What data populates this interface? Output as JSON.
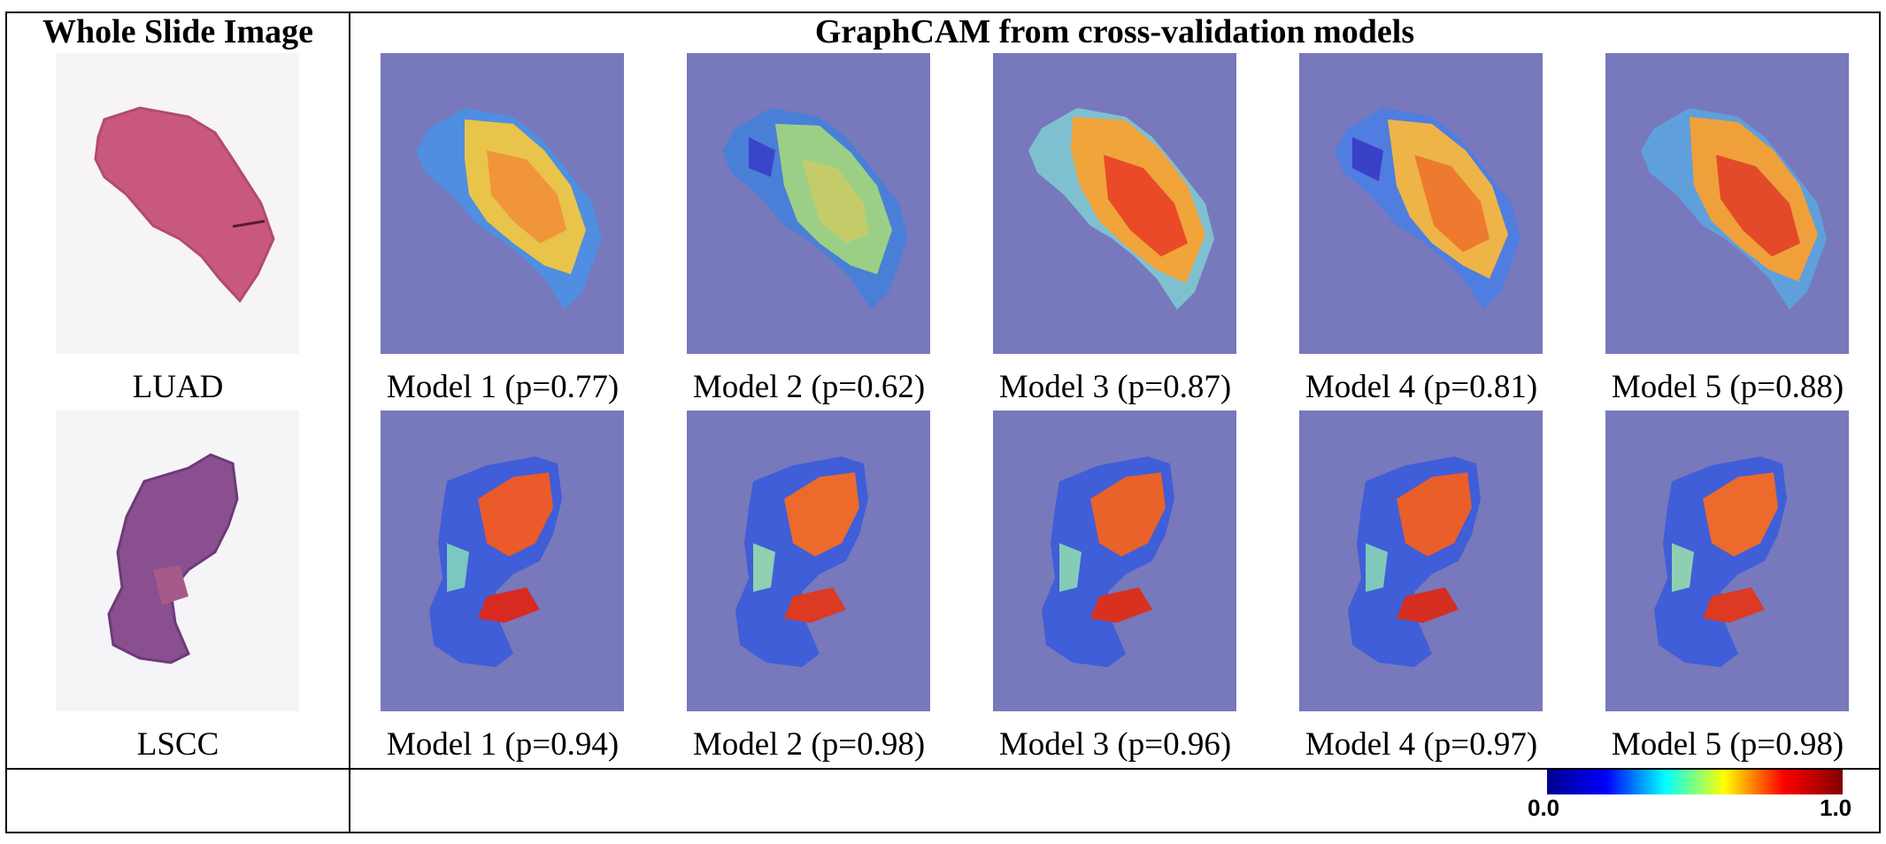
{
  "header": {
    "left_title": "Whole Slide Image",
    "right_title": "GraphCAM from cross-validation models"
  },
  "rows": [
    {
      "label": "LUAD",
      "models": [
        {
          "caption": "Model 1 (p=0.77)",
          "p": 0.77
        },
        {
          "caption": "Model 2 (p=0.62)",
          "p": 0.62
        },
        {
          "caption": "Model 3 (p=0.87)",
          "p": 0.87
        },
        {
          "caption": "Model 4 (p=0.81)",
          "p": 0.81
        },
        {
          "caption": "Model 5 (p=0.88)",
          "p": 0.88
        }
      ]
    },
    {
      "label": "LSCC",
      "models": [
        {
          "caption": "Model 1 (p=0.94)",
          "p": 0.94
        },
        {
          "caption": "Model 2 (p=0.98)",
          "p": 0.98
        },
        {
          "caption": "Model 3 (p=0.96)",
          "p": 0.96
        },
        {
          "caption": "Model 4 (p=0.97)",
          "p": 0.97
        },
        {
          "caption": "Model 5 (p=0.98)",
          "p": 0.98
        }
      ]
    }
  ],
  "colorbar": {
    "min_label": "0.0",
    "max_label": "1.0",
    "colors": [
      "#00008f",
      "#0000ff",
      "#00ffff",
      "#ffff00",
      "#ff0000",
      "#800000"
    ]
  },
  "colors": {
    "cam_background": "#7878bc",
    "luad_tissue": "#c9587f",
    "lscc_tissue": "#8a4f8f"
  }
}
